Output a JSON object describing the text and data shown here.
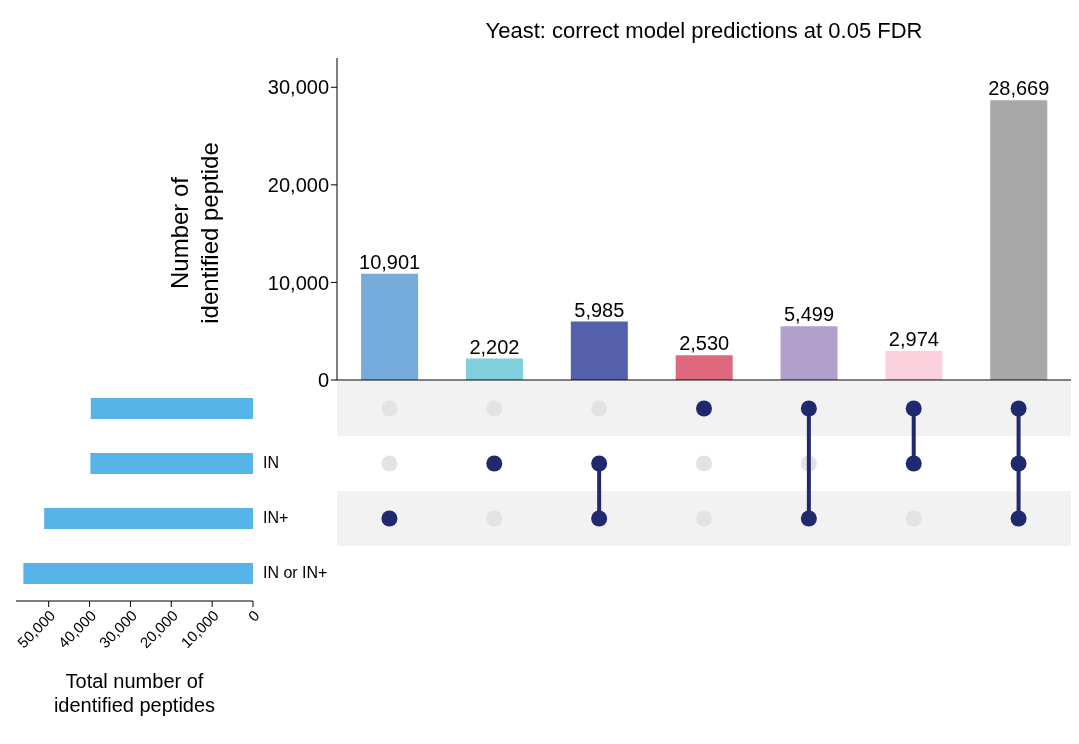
{
  "chart_data": [
    {
      "type": "bar",
      "title": "Yeast: correct model predictions at 0.05 FDR",
      "ylabel": "Number of\nidentified peptide",
      "categories": [
        null,
        null,
        null,
        null,
        null,
        null,
        null
      ],
      "values": [
        10901,
        2202,
        5985,
        2530,
        5499,
        2974,
        28669
      ],
      "value_labels": [
        "10,901",
        "2,202",
        "5,985",
        "2,530",
        "5,499",
        "2,974",
        "28,669"
      ],
      "colors": [
        "#76acdc",
        "#7fd0dc",
        "#5560ad",
        "#e0687e",
        "#b2a0cc",
        "#f9d0dc",
        "#a8a8a8"
      ],
      "ylim": [
        0,
        33000
      ],
      "yticks": [
        {
          "value": 0,
          "label": "0"
        },
        {
          "value": 10000,
          "label": "10,000"
        },
        {
          "value": 20000,
          "label": "20,000"
        },
        {
          "value": 30000,
          "label": "30,000"
        }
      ]
    },
    {
      "type": "bar",
      "orientation": "horizontal",
      "xlabel": "Total number of\nidentified peptides",
      "categories": [
        null,
        "IN",
        "IN+",
        "IN or IN+"
      ],
      "values": [
        39700,
        39800,
        51100,
        56200
      ],
      "color": "#56b4e9",
      "xlim": [
        58000,
        0
      ],
      "xticks": [
        {
          "value": 50000,
          "label": "50,000"
        },
        {
          "value": 40000,
          "label": "40,000"
        },
        {
          "value": 30000,
          "label": "30,000"
        },
        {
          "value": 20000,
          "label": "20,000"
        },
        {
          "value": 10000,
          "label": "10,000"
        },
        0
      ]
    }
  ]
}
